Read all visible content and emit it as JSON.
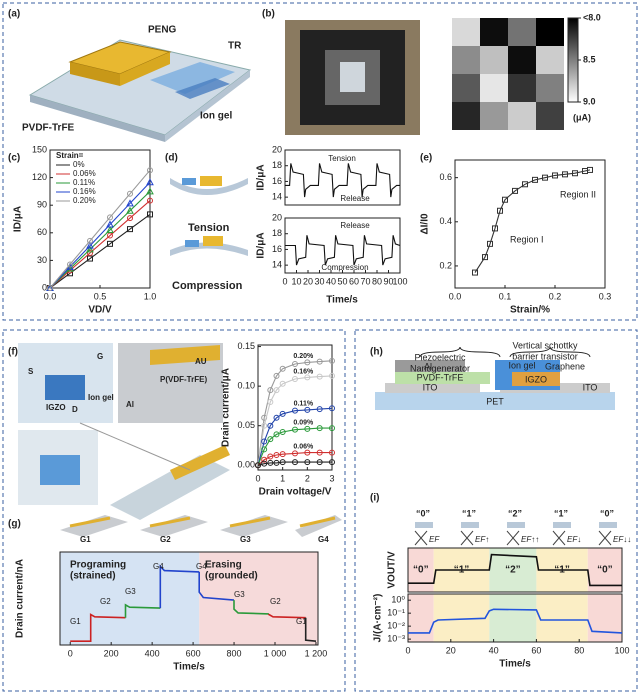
{
  "panels": {
    "a": {
      "label": "(a)",
      "texts": [
        "PENG",
        "TR",
        "PVDF-TrFE",
        "Ion gel"
      ]
    },
    "b": {
      "label": "(b)",
      "chart": {
        "type": "heatmap",
        "values": [
          [
            8.85,
            8.05,
            8.45,
            8.0
          ],
          [
            8.55,
            8.75,
            8.05,
            8.8
          ],
          [
            8.35,
            8.9,
            8.2,
            8.5
          ],
          [
            8.15,
            8.6,
            8.8,
            8.25
          ]
        ],
        "clim": [
          8.0,
          9.0
        ],
        "colorbar_ticks": [
          {
            "value": 8.0,
            "label": "<8.0"
          },
          8.5,
          {
            "value": 9.0,
            "label": "9.0"
          }
        ],
        "unit": "(μA)"
      }
    },
    "c": {
      "label": "(c)",
      "chart": {
        "type": "line",
        "xlabel": "VD/V",
        "ylabel": "ID/μA",
        "xlim": [
          0,
          1.0
        ],
        "ylim": [
          0,
          150
        ],
        "xticks": [
          {
            "value": 0,
            "label": "0.0"
          },
          0.5,
          {
            "value": 1.0,
            "label": "1.0"
          }
        ],
        "yticks": [
          0,
          30,
          60,
          90,
          120,
          150
        ],
        "legend_title": "Strain=",
        "x": [
          0,
          0.2,
          0.4,
          0.6,
          0.8,
          1.0
        ],
        "series": [
          {
            "name": "0%",
            "color": "#222222",
            "marker": "square",
            "values": [
              0,
              16,
              32,
              48,
              64,
              80
            ]
          },
          {
            "name": "0.06%",
            "color": "#d03030",
            "marker": "circle",
            "values": [
              0,
              19,
              38,
              57,
              76,
              95
            ]
          },
          {
            "name": "0.11%",
            "color": "#2a9a3a",
            "marker": "triangle",
            "values": [
              0,
              21,
              42,
              63,
              84,
              105
            ]
          },
          {
            "name": "0.16%",
            "color": "#2244cc",
            "marker": "triangle",
            "values": [
              0,
              23,
              46,
              69,
              92,
              115
            ]
          },
          {
            "name": "0.20%",
            "color": "#999999",
            "marker": "circle",
            "values": [
              0,
              25.6,
              51.2,
              76.8,
              102.4,
              128
            ]
          }
        ]
      }
    },
    "d": {
      "label": "(d)",
      "texts": [
        "Tension",
        "Compression"
      ],
      "xlabel": "Time/s",
      "charts": [
        {
          "type": "line",
          "ylabel": "ID/μA",
          "xlim": [
            0,
            100
          ],
          "ylim": [
            13,
            20
          ],
          "yticks": [
            14,
            16,
            18,
            20
          ],
          "annotations": [
            "Tension",
            "Release"
          ],
          "series": [
            {
              "color": "#111111",
              "x": [
                0,
                4,
                5,
                7,
                16,
                17,
                18,
                22,
                29,
                30,
                32,
                41,
                42,
                43,
                47,
                54,
                55,
                57,
                66,
                67,
                68,
                72,
                79,
                80,
                82,
                91,
                92,
                93,
                97,
                100
              ],
              "values": [
                15.5,
                15.5,
                18.3,
                17.2,
                16.9,
                14.0,
                15.0,
                15.5,
                15.5,
                18.3,
                17.2,
                16.9,
                14.0,
                15.0,
                15.5,
                15.5,
                18.3,
                17.2,
                16.9,
                14.0,
                15.0,
                15.5,
                15.5,
                18.3,
                17.2,
                16.9,
                14.0,
                15.0,
                15.5,
                15.5
              ]
            }
          ]
        },
        {
          "type": "line",
          "ylabel": "ID/μA",
          "xlim": [
            0,
            100
          ],
          "ylim": [
            13,
            20
          ],
          "yticks": [
            14,
            16,
            18,
            20
          ],
          "xticks": [
            0,
            10,
            20,
            30,
            40,
            50,
            60,
            70,
            80,
            90,
            100
          ],
          "annotations": [
            "Release",
            "Compression"
          ],
          "series": [
            {
              "color": "#111111",
              "x": [
                0,
                9,
                10,
                12,
                18,
                19,
                21,
                34,
                35,
                37,
                43,
                44,
                46,
                59,
                60,
                62,
                68,
                69,
                71,
                84,
                85,
                87,
                93,
                94,
                96,
                100
              ],
              "values": [
                16.5,
                16.5,
                14.0,
                14.8,
                15.0,
                17.8,
                16.7,
                16.5,
                14.0,
                14.8,
                15.0,
                17.8,
                16.7,
                16.5,
                14.0,
                14.8,
                15.0,
                17.8,
                16.7,
                16.5,
                14.0,
                14.8,
                15.0,
                17.8,
                16.7,
                16.5
              ]
            }
          ]
        }
      ]
    },
    "e": {
      "label": "(e)",
      "chart": {
        "type": "line",
        "xlabel": "Strain/%",
        "ylabel": "ΔI/I0",
        "xlim": [
          0,
          0.3
        ],
        "ylim": [
          0.1,
          0.68
        ],
        "xticks": [
          {
            "value": 0,
            "label": "0.0"
          },
          0.1,
          0.2,
          {
            "value": 0.3,
            "label": "0.3"
          }
        ],
        "yticks": [
          0.2,
          0.4,
          0.6
        ],
        "annotations": [
          "Region I",
          "Region II"
        ],
        "x": [
          0.04,
          0.06,
          0.07,
          0.08,
          0.09,
          0.1,
          0.12,
          0.14,
          0.16,
          0.18,
          0.2,
          0.22,
          0.24,
          0.26,
          0.27
        ],
        "series": [
          {
            "color": "#333333",
            "marker": "square",
            "values": [
              0.17,
              0.24,
              0.3,
              0.37,
              0.45,
              0.5,
              0.54,
              0.57,
              0.59,
              0.6,
              0.61,
              0.615,
              0.62,
              0.63,
              0.635
            ]
          }
        ]
      }
    },
    "f": {
      "label": "(f)",
      "texts": [
        "S",
        "G",
        "IGZO",
        "D",
        "Ion gel",
        "AU",
        "P(VDF-TrFE)",
        "Al"
      ],
      "chart": {
        "type": "line",
        "xlabel": "Drain voltage/V",
        "ylabel": "Drain current/μA",
        "xlim": [
          0,
          3
        ],
        "ylim": [
          -0.006,
          0.152
        ],
        "xticks": [
          0,
          1,
          2,
          3
        ],
        "yticks": [
          {
            "value": 0,
            "label": "0.00"
          },
          0.05,
          {
            "value": 0.1,
            "label": "0.10"
          },
          0.15
        ],
        "x": [
          0,
          0.25,
          0.5,
          0.75,
          1,
          1.5,
          2,
          2.5,
          3
        ],
        "series": [
          {
            "name": "0.20%",
            "color": "#999999",
            "marker": "circle",
            "values": [
              0,
              0.06,
              0.095,
              0.113,
              0.122,
              0.128,
              0.13,
              0.131,
              0.132
            ]
          },
          {
            "name": "0.16%",
            "color": "#c8c8c8",
            "marker": "circle",
            "values": [
              0,
              0.05,
              0.08,
              0.095,
              0.103,
              0.109,
              0.111,
              0.112,
              0.113
            ]
          },
          {
            "name": "0.11%",
            "color": "#2244aa",
            "marker": "circle",
            "values": [
              0,
              0.03,
              0.05,
              0.06,
              0.065,
              0.069,
              0.07,
              0.071,
              0.072
            ]
          },
          {
            "name": "0.09%",
            "color": "#2a9a3a",
            "marker": "circle",
            "values": [
              0,
              0.02,
              0.033,
              0.039,
              0.042,
              0.045,
              0.046,
              0.047,
              0.047
            ]
          },
          {
            "name": "0.06%",
            "color": "#d03030",
            "marker": "circle",
            "values": [
              0,
              0.007,
              0.011,
              0.013,
              0.014,
              0.015,
              0.016,
              0.016,
              0.016
            ]
          },
          {
            "color": "#222222",
            "marker": "circle",
            "values": [
              0,
              0.002,
              0.003,
              0.003,
              0.004,
              0.004,
              0.004,
              0.004,
              0.004
            ]
          }
        ]
      }
    },
    "g": {
      "label": "(g)",
      "device_labels": [
        "G1",
        "G2",
        "G3",
        "G4"
      ],
      "chart": {
        "type": "line",
        "xlabel": "Time/s",
        "ylabel": "Drain current/nA",
        "xlim": [
          -50,
          1210
        ],
        "ylim": [
          0,
          290
        ],
        "xticks": [
          0,
          200,
          400,
          600,
          800,
          {
            "value": 1000,
            "label": "1 000"
          },
          {
            "value": 1200,
            "label": "1 200"
          }
        ],
        "regions": [
          {
            "label": [
              "Programing",
              "(strained)"
            ],
            "from": -50,
            "to": 630,
            "color": "#d5e3f3"
          },
          {
            "label": [
              "Erasing",
              "(grounded)"
            ],
            "from": 630,
            "to": 1210,
            "color": "#f6dada"
          }
        ],
        "annotations": [
          "G1",
          "G2",
          "G3",
          "G4",
          "G4",
          "G3",
          "G2",
          "G1"
        ],
        "series": [
          {
            "color": "#cc2222",
            "x": [
              0,
              100,
              100,
              120,
              270
            ],
            "values": [
              12,
              12,
              95,
              88,
              85
            ]
          },
          {
            "color": "#2a9a3a",
            "x": [
              270,
              270,
              290,
              440
            ],
            "values": [
              85,
              125,
              118,
              115
            ]
          },
          {
            "color": "#2244cc",
            "x": [
              440,
              440,
              460,
              630
            ],
            "values": [
              115,
              245,
              232,
              228
            ]
          },
          {
            "color": "#2244cc",
            "x": [
              630,
              630,
              650,
              800
            ],
            "values": [
              228,
              165,
              148,
              140
            ]
          },
          {
            "color": "#2a9a3a",
            "x": [
              800,
              800,
              820,
              970
            ],
            "values": [
              140,
              112,
              100,
              97
            ]
          },
          {
            "color": "#cc2222",
            "x": [
              970,
              970,
              990,
              1150
            ],
            "values": [
              97,
              95,
              88,
              85
            ]
          },
          {
            "color": "#222222",
            "x": [
              1150,
              1150,
              1200
            ],
            "values": [
              85,
              15,
              12
            ]
          }
        ]
      }
    },
    "h": {
      "label": "(h)",
      "texts": [
        "Piezoelectric",
        "Nanogenerator",
        "Vertical schottky",
        "barrier transistor",
        "Al",
        "PVDF-TrFE",
        "ITO",
        "Ion gel",
        "Graphene",
        "IGZO",
        "ITO",
        "PET"
      ]
    },
    "i": {
      "label": "(i)",
      "states": [
        "“0”",
        "“1”",
        "“2”",
        "“1”",
        "“0”"
      ],
      "fermi": [
        "EF",
        "EF↑",
        "EF↑↑",
        "EF↓",
        "EF↓↓"
      ],
      "regions": [
        {
          "from": 0,
          "to": 12,
          "color": "#f8d9d6"
        },
        {
          "from": 12,
          "to": 38,
          "color": "#fbeec5"
        },
        {
          "from": 38,
          "to": 60,
          "color": "#d8ecd3"
        },
        {
          "from": 60,
          "to": 84,
          "color": "#fbeec5"
        },
        {
          "from": 84,
          "to": 100,
          "color": "#f8d9d6"
        }
      ],
      "charts": [
        {
          "type": "line",
          "ylabel": "VOUT/V",
          "xlim": [
            0,
            100
          ],
          "ylim": [
            0,
            1
          ],
          "series": [
            {
              "color": "#111111",
              "x": [
                0,
                12,
                13,
                38,
                39,
                60,
                61,
                84,
                85,
                100
              ],
              "values": [
                0.2,
                0.2,
                0.5,
                0.5,
                0.85,
                0.8,
                0.5,
                0.5,
                0.15,
                0.15
              ]
            }
          ]
        },
        {
          "type": "line",
          "ylabel": "J/(A·cm⁻²)",
          "xlabel": "Time/s",
          "xlim": [
            0,
            100
          ],
          "ylim": [
            0.0006,
            3
          ],
          "ylog": true,
          "xticks": [
            0,
            20,
            40,
            60,
            80,
            100
          ],
          "yticks": [
            {
              "value": 0.001,
              "label": "10⁻³"
            },
            {
              "value": 0.01,
              "label": "10⁻²"
            },
            {
              "value": 0.1,
              "label": "10⁻¹"
            },
            {
              "value": 1,
              "label": "10⁰"
            }
          ],
          "series": [
            {
              "color": "#2255dd",
              "x": [
                0,
                10,
                12,
                14,
                36,
                38,
                40,
                60,
                62,
                84,
                86,
                100
              ],
              "values": [
                0.003,
                0.003,
                0.02,
                0.03,
                0.04,
                0.15,
                0.2,
                0.18,
                0.03,
                0.03,
                0.004,
                0.003
              ]
            }
          ]
        }
      ]
    }
  }
}
